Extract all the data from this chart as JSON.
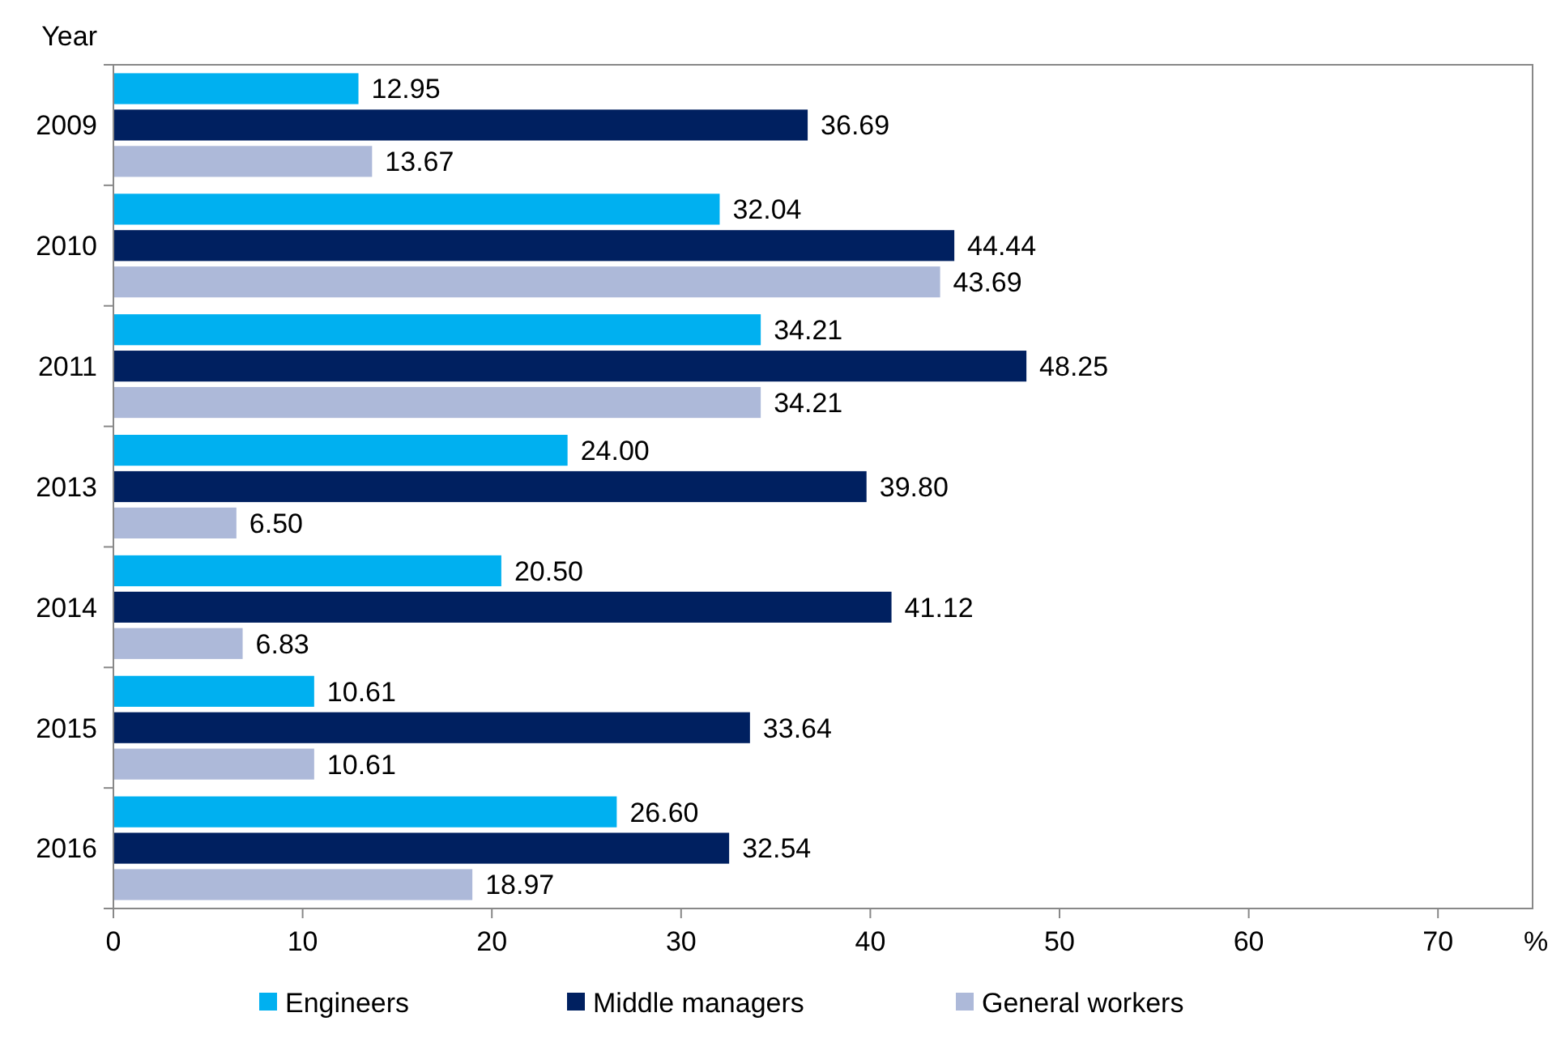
{
  "chart_data": {
    "type": "bar",
    "orientation": "horizontal",
    "ylabel": "Year",
    "xlabel": "%",
    "categories": [
      "2009",
      "2010",
      "2011",
      "2013",
      "2014",
      "2015",
      "2016"
    ],
    "series": [
      {
        "name": "Engineers",
        "color": "#00b0f0",
        "values": [
          12.95,
          32.04,
          34.21,
          24.0,
          20.5,
          10.61,
          26.6
        ],
        "value_labels": [
          "12.95",
          "32.04",
          "34.21",
          "24.00",
          "20.50",
          "10.61",
          "26.60"
        ]
      },
      {
        "name": "Middle managers",
        "color": "#002060",
        "values": [
          36.69,
          44.44,
          48.25,
          39.8,
          41.12,
          33.64,
          32.54
        ],
        "value_labels": [
          "36.69",
          "44.44",
          "48.25",
          "39.80",
          "41.12",
          "33.64",
          "32.54"
        ]
      },
      {
        "name": "General workers",
        "color": "#adb9d9",
        "values": [
          13.67,
          43.69,
          34.21,
          6.5,
          6.83,
          10.61,
          18.97
        ],
        "value_labels": [
          "13.67",
          "43.69",
          "34.21",
          "6.50",
          "6.83",
          "10.61",
          "18.97"
        ]
      }
    ],
    "xlim": [
      0,
      75
    ],
    "xticks": [
      0,
      10,
      20,
      30,
      40,
      50,
      60,
      70
    ],
    "grid": false,
    "legend": "bottom"
  }
}
